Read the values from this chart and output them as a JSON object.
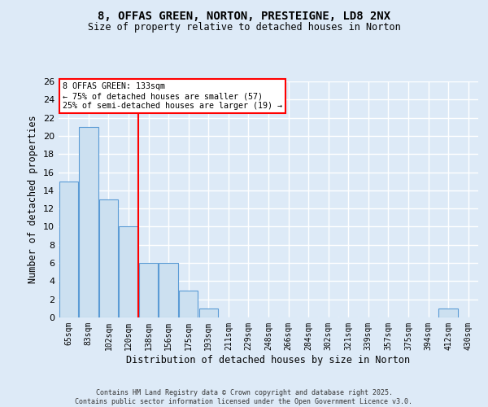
{
  "title1": "8, OFFAS GREEN, NORTON, PRESTEIGNE, LD8 2NX",
  "title2": "Size of property relative to detached houses in Norton",
  "xlabel": "Distribution of detached houses by size in Norton",
  "ylabel": "Number of detached properties",
  "categories": [
    "65sqm",
    "83sqm",
    "102sqm",
    "120sqm",
    "138sqm",
    "156sqm",
    "175sqm",
    "193sqm",
    "211sqm",
    "229sqm",
    "248sqm",
    "266sqm",
    "284sqm",
    "302sqm",
    "321sqm",
    "339sqm",
    "357sqm",
    "375sqm",
    "394sqm",
    "412sqm",
    "430sqm"
  ],
  "values": [
    15,
    21,
    13,
    10,
    6,
    6,
    3,
    1,
    0,
    0,
    0,
    0,
    0,
    0,
    0,
    0,
    0,
    0,
    0,
    1,
    0
  ],
  "bar_color": "#cce0f0",
  "bar_edge_color": "#5b9bd5",
  "red_line_index": 4,
  "ylim": [
    0,
    26
  ],
  "yticks": [
    0,
    2,
    4,
    6,
    8,
    10,
    12,
    14,
    16,
    18,
    20,
    22,
    24,
    26
  ],
  "annotation_title": "8 OFFAS GREEN: 133sqm",
  "annotation_line1": "← 75% of detached houses are smaller (57)",
  "annotation_line2": "25% of semi-detached houses are larger (19) →",
  "footer1": "Contains HM Land Registry data © Crown copyright and database right 2025.",
  "footer2": "Contains public sector information licensed under the Open Government Licence v3.0.",
  "bg_color": "#ddeaf7",
  "plot_bg_color": "#ddeaf7",
  "grid_color": "#ffffff",
  "title_fontsize": 10,
  "subtitle_fontsize": 9,
  "ylabel_text": "Number of detached properties"
}
